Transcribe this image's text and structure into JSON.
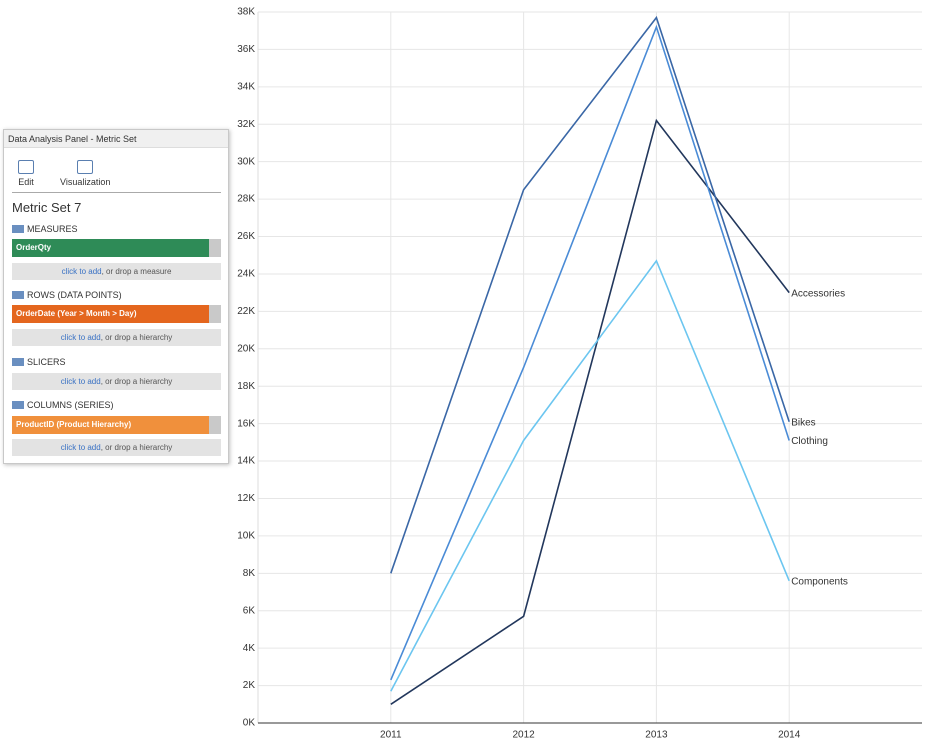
{
  "chart_data": {
    "type": "line",
    "categories": [
      "2011",
      "2012",
      "2013",
      "2014"
    ],
    "series": [
      {
        "name": "Accessories",
        "color": "#22375c",
        "values": [
          1000,
          5700,
          32200,
          23000
        ]
      },
      {
        "name": "Bikes",
        "color": "#3a67a6",
        "values": [
          8000,
          28500,
          37700,
          16100
        ]
      },
      {
        "name": "Clothing",
        "color": "#4a8bd6",
        "values": [
          2300,
          19000,
          37200,
          15100
        ]
      },
      {
        "name": "Components",
        "color": "#6cc6f0",
        "values": [
          1700,
          15100,
          24700,
          7600
        ]
      }
    ],
    "ylim": [
      0,
      38000
    ],
    "yticks": [
      {
        "value": 0,
        "label": "0K"
      },
      {
        "value": 2000,
        "label": "2K"
      },
      {
        "value": 4000,
        "label": "4K"
      },
      {
        "value": 6000,
        "label": "6K"
      },
      {
        "value": 8000,
        "label": "8K"
      },
      {
        "value": 10000,
        "label": "10K"
      },
      {
        "value": 12000,
        "label": "12K"
      },
      {
        "value": 14000,
        "label": "14K"
      },
      {
        "value": 16000,
        "label": "16K"
      },
      {
        "value": 18000,
        "label": "18K"
      },
      {
        "value": 20000,
        "label": "20K"
      },
      {
        "value": 22000,
        "label": "22K"
      },
      {
        "value": 24000,
        "label": "24K"
      },
      {
        "value": 26000,
        "label": "26K"
      },
      {
        "value": 28000,
        "label": "28K"
      },
      {
        "value": 30000,
        "label": "30K"
      },
      {
        "value": 32000,
        "label": "32K"
      },
      {
        "value": 34000,
        "label": "34K"
      },
      {
        "value": 36000,
        "label": "36K"
      },
      {
        "value": 38000,
        "label": "38K"
      }
    ],
    "grid": true
  },
  "panel": {
    "title": "Data Analysis Panel - Metric Set",
    "toolbar": [
      "Edit",
      "Visualization"
    ],
    "heading": "Metric Set 7",
    "sections": [
      {
        "label": "MEASURES",
        "item": "OrderQty",
        "add_link": "click to add",
        "add_hint": ", or drop a measure"
      },
      {
        "label": "ROWS (DATA POINTS)",
        "item": "OrderDate (Year > Month > Day)",
        "add_link": "click to add",
        "add_hint": ", or drop a hierarchy"
      },
      {
        "label": "SLICERS",
        "add_link": "click to add",
        "add_hint": ", or drop a hierarchy"
      },
      {
        "label": "COLUMNS (SERIES)",
        "item": "ProductID (Product Hierarchy)",
        "add_link": "click to add",
        "add_hint": ", or drop a hierarchy"
      }
    ]
  }
}
